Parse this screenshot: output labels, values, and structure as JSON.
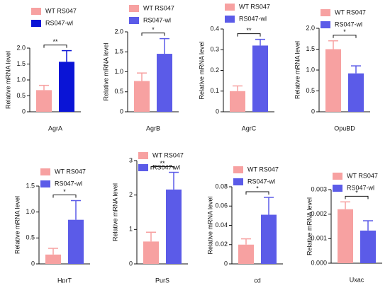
{
  "chart_data": [
    {
      "type": "bar",
      "xlabel": "AgrA",
      "ylabel": "Relative mRNA level",
      "annotation": "**",
      "ylim": [
        0,
        2
      ],
      "yticks": [
        0,
        0.5,
        {
          "value": 1,
          "label": "1.0"
        },
        1.5,
        {
          "value": 2,
          "label": "2.0"
        }
      ],
      "series": [
        {
          "name": "WT RS047",
          "color": "#f7a1a1",
          "values": [
            0.68
          ],
          "errors": [
            0.15
          ]
        },
        {
          "name": "RS047-wl",
          "color": "#0a14d6",
          "values": [
            1.57
          ],
          "errors": [
            0.35
          ]
        }
      ]
    },
    {
      "type": "bar",
      "xlabel": "AgrB",
      "ylabel": "Relative mRNA level",
      "annotation": "*",
      "ylim": [
        0,
        2
      ],
      "yticks": [
        0,
        0.5,
        {
          "value": 1,
          "label": "1.0"
        },
        1.5,
        {
          "value": 2,
          "label": "2.0"
        }
      ],
      "series": [
        {
          "name": "WT RS047",
          "color": "#f7a1a1",
          "values": [
            0.77
          ],
          "errors": [
            0.2
          ]
        },
        {
          "name": "RS047-wl",
          "color": "#5b5be8",
          "values": [
            1.45
          ],
          "errors": [
            0.38
          ]
        }
      ]
    },
    {
      "type": "bar",
      "xlabel": "AgrC",
      "ylabel": "Relative mRNA level",
      "annotation": "**",
      "ylim": [
        0,
        0.4
      ],
      "yticks": [
        0,
        0.1,
        0.2,
        0.3,
        0.4
      ],
      "series": [
        {
          "name": "WT RS047",
          "color": "#f7a1a1",
          "values": [
            0.1
          ],
          "errors": [
            0.025
          ]
        },
        {
          "name": "RS047-wl",
          "color": "#5b5be8",
          "values": [
            0.32
          ],
          "errors": [
            0.03
          ]
        }
      ]
    },
    {
      "type": "bar",
      "xlabel": "OpuBD",
      "ylabel": "Relative mRNA level",
      "annotation": "*",
      "ylim": [
        0,
        2
      ],
      "yticks": [
        0,
        0.5,
        {
          "value": 1,
          "label": "1.0"
        },
        1.5,
        {
          "value": 2,
          "label": "2.0"
        }
      ],
      "series": [
        {
          "name": "WT RS047",
          "color": "#f7a1a1",
          "values": [
            1.5
          ],
          "errors": [
            0.2
          ]
        },
        {
          "name": "RS047-wl",
          "color": "#5b5be8",
          "values": [
            0.92
          ],
          "errors": [
            0.18
          ]
        }
      ]
    },
    {
      "type": "bar",
      "xlabel": "HprT",
      "ylabel": "Relative mRNA level",
      "annotation": "*",
      "ylim": [
        0,
        1.5
      ],
      "yticks": [
        0,
        0.5,
        {
          "value": 1,
          "label": "1.0"
        },
        1.5
      ],
      "series": [
        {
          "name": "WT RS047",
          "color": "#f7a1a1",
          "values": [
            0.18
          ],
          "errors": [
            0.12
          ]
        },
        {
          "name": "RS047-wl",
          "color": "#5b5be8",
          "values": [
            0.85
          ],
          "errors": [
            0.37
          ]
        }
      ]
    },
    {
      "type": "bar",
      "xlabel": "PurS",
      "ylabel": "Relative mRNA level",
      "annotation": "**",
      "ylim": [
        0,
        3
      ],
      "yticks": [
        0,
        1,
        2,
        3
      ],
      "series": [
        {
          "name": "WT RS047",
          "color": "#f7a1a1",
          "values": [
            0.65
          ],
          "errors": [
            0.27
          ]
        },
        {
          "name": "RS047-wl",
          "color": "#5b5be8",
          "values": [
            2.16
          ],
          "errors": [
            0.5
          ]
        }
      ]
    },
    {
      "type": "bar",
      "xlabel": "cd",
      "ylabel": "Relative mRNA level",
      "annotation": "*",
      "ylim": [
        0,
        0.08
      ],
      "yticks": [
        0,
        0.02,
        0.04,
        0.06,
        0.08
      ],
      "series": [
        {
          "name": "WT RS047",
          "color": "#f7a1a1",
          "values": [
            0.02
          ],
          "errors": [
            0.006
          ]
        },
        {
          "name": "RS047-wl",
          "color": "#5b5be8",
          "values": [
            0.051
          ],
          "errors": [
            0.018
          ]
        }
      ]
    },
    {
      "type": "bar",
      "xlabel": "Uxac",
      "ylabel": "Relative mRNA level",
      "annotation": "*",
      "ylim": [
        0,
        0.003
      ],
      "yticks": [
        {
          "value": 0,
          "label": "0.000"
        },
        0.001,
        0.002,
        0.003
      ],
      "series": [
        {
          "name": "WT RS047",
          "color": "#f7a1a1",
          "values": [
            0.0022
          ],
          "errors": [
            0.0003
          ]
        },
        {
          "name": "RS047-wl",
          "color": "#5b5be8",
          "values": [
            0.00133
          ],
          "errors": [
            0.0004
          ]
        }
      ]
    }
  ]
}
